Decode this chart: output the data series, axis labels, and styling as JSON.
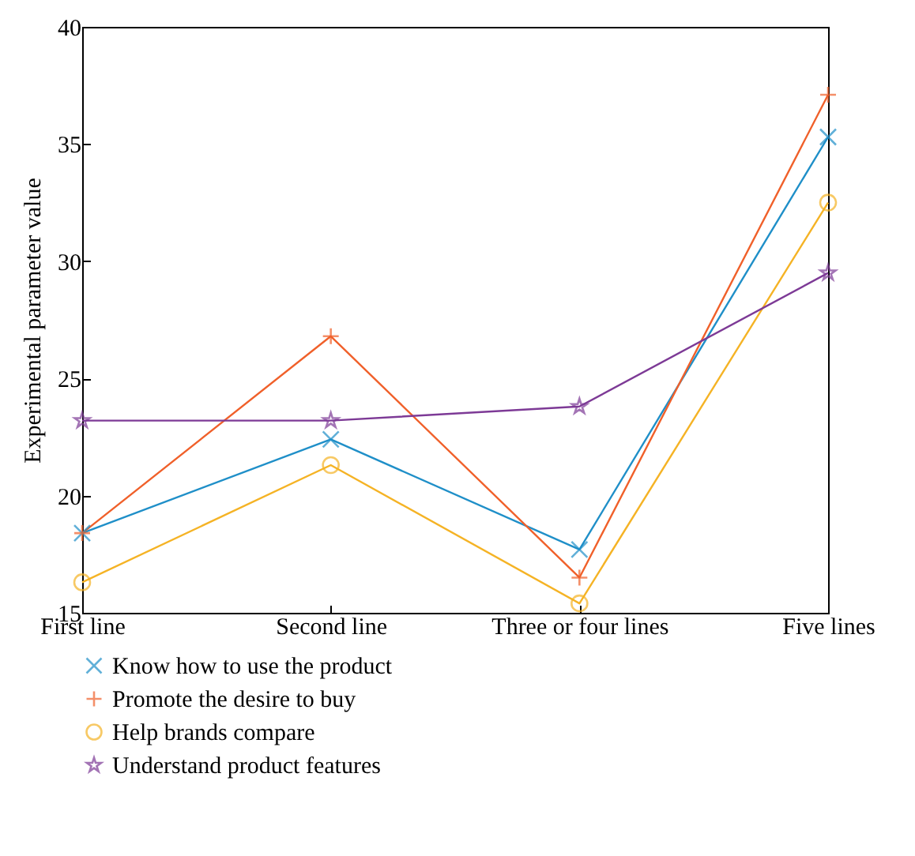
{
  "chart_data": {
    "type": "line",
    "ylabel": "Experimental parameter value",
    "categories": [
      "First line",
      "Second line",
      "Three or four lines",
      "Five lines"
    ],
    "ylim": [
      15,
      40
    ],
    "yticks": [
      15,
      20,
      25,
      30,
      35,
      40
    ],
    "grid": false,
    "legend": "bottom left",
    "line_style": "solid",
    "series": [
      {
        "name": "Know how to use the product",
        "color": "#1f8fc8",
        "marker": "x",
        "values": [
          18.4,
          22.4,
          17.7,
          35.3
        ]
      },
      {
        "name": "Promote the desire to buy",
        "color": "#f0602a",
        "marker": "cross",
        "values": [
          18.4,
          26.8,
          16.5,
          37.1
        ]
      },
      {
        "name": "Help brands compare",
        "color": "#f5b325",
        "marker": "circle",
        "values": [
          16.3,
          21.3,
          15.4,
          32.5
        ]
      },
      {
        "name": "Understand product features",
        "color": "#7d3a96",
        "marker": "star",
        "values": [
          23.2,
          23.2,
          23.8,
          29.5
        ]
      }
    ]
  }
}
